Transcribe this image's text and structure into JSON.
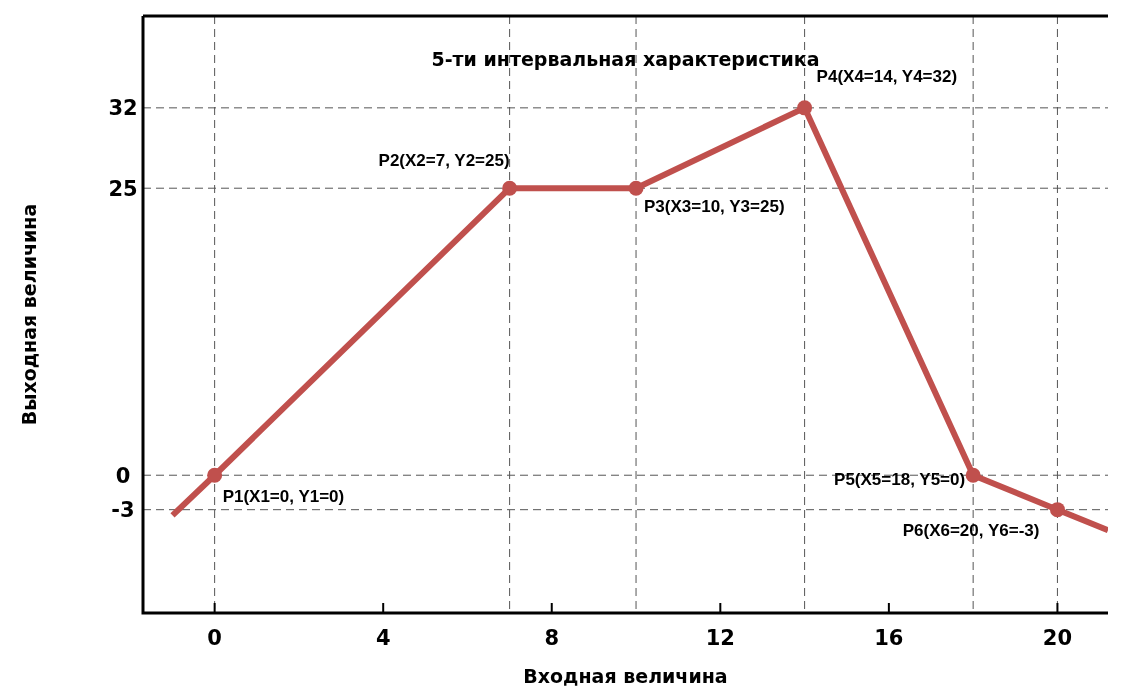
{
  "chart_data": {
    "type": "line",
    "title": "5-ти интервальная характеристика",
    "xlabel": "Входная величина",
    "ylabel": "Выходная величина",
    "xlim": [
      -1.7,
      21.2
    ],
    "xticks": [
      0,
      4,
      8,
      12,
      16,
      20
    ],
    "ylim": [
      -12,
      40
    ],
    "yticks": [
      -3,
      0,
      25,
      32
    ],
    "grid": false,
    "series": [
      {
        "color": "#c0504d",
        "marker": "none",
        "x": [
          -1,
          0,
          7,
          10,
          14,
          18,
          20,
          21.2
        ],
        "values": [
          -3.5,
          0,
          25,
          25,
          32,
          0,
          -3,
          -4.8
        ]
      },
      {
        "type": "scatter",
        "color": "#c0504d",
        "marker": "circle",
        "x": [
          0,
          7,
          10,
          14,
          18,
          20
        ],
        "values": [
          0,
          25,
          25,
          32,
          0,
          -3
        ]
      }
    ],
    "ref_lines": [
      {
        "axis": "y",
        "value": 32,
        "line_style": "dashed",
        "color": "#555555"
      },
      {
        "axis": "y",
        "value": 25,
        "line_style": "dashed",
        "color": "#555555"
      },
      {
        "axis": "y",
        "value": 0,
        "line_style": "dashed",
        "color": "#555555"
      },
      {
        "axis": "y",
        "value": -3,
        "line_style": "dashed",
        "color": "#555555"
      },
      {
        "axis": "x",
        "value": 0,
        "line_style": "dashed",
        "color": "#555555"
      },
      {
        "axis": "x",
        "value": 7,
        "line_style": "dashed",
        "color": "#555555"
      },
      {
        "axis": "x",
        "value": 10,
        "line_style": "dashed",
        "color": "#555555"
      },
      {
        "axis": "x",
        "value": 14,
        "line_style": "dashed",
        "color": "#555555"
      },
      {
        "axis": "x",
        "value": 18,
        "line_style": "dashed",
        "color": "#555555"
      },
      {
        "axis": "x",
        "value": 20,
        "line_style": "dashed",
        "color": "#555555"
      }
    ],
    "annotations": [
      {
        "text": "P1(X1=0, Y1=0)",
        "x": 0,
        "y": 0
      },
      {
        "text": "P2(X2=7, Y2=25)",
        "x": 7,
        "y": 25
      },
      {
        "text": "P3(X3=10, Y3=25)",
        "x": 10,
        "y": 25
      },
      {
        "text": "P4(X4=14, Y4=32)",
        "x": 14,
        "y": 32
      },
      {
        "text": "P5(X5=18, Y5=0)",
        "x": 18,
        "y": 0
      },
      {
        "text": "P6(X6=20, Y6=-3)",
        "x": 20,
        "y": -3
      }
    ]
  }
}
